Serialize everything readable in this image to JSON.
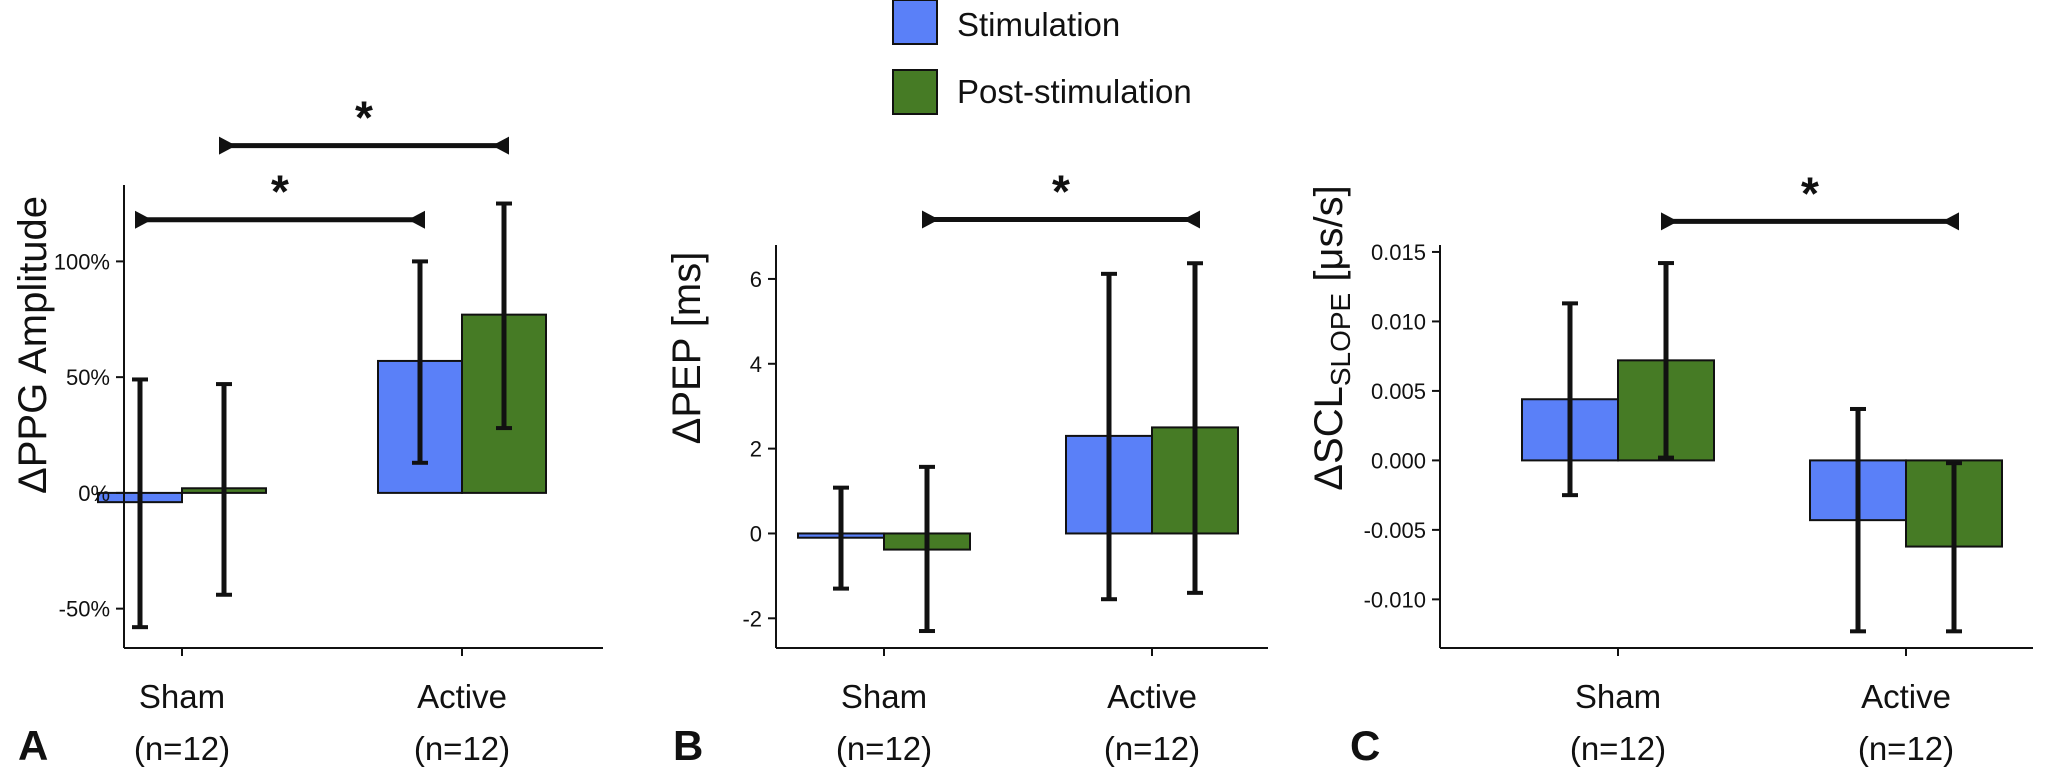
{
  "legend": {
    "items": [
      {
        "label": "Stimulation",
        "color": "#5a80f8"
      },
      {
        "label": "Post-stimulation",
        "color": "#467b25"
      }
    ]
  },
  "chart_data": [
    {
      "type": "bar",
      "panel_letter": "A",
      "ylabel": {
        "main": "ΔPPG Amplitude",
        "sub": ""
      },
      "categories": [
        {
          "name": "Sham",
          "n": "(n=12)"
        },
        {
          "name": "Active",
          "n": "(n=12)"
        }
      ],
      "series": [
        {
          "name": "Stimulation",
          "values": [
            -4,
            57
          ],
          "err_low": [
            -58,
            13
          ],
          "err_high": [
            49,
            100
          ]
        },
        {
          "name": "Post-stimulation",
          "values": [
            2,
            77
          ],
          "err_low": [
            -44,
            28
          ],
          "err_high": [
            47,
            125
          ]
        }
      ],
      "ylim": [
        -67,
        133
      ],
      "yticks": [
        -50,
        0,
        50,
        100
      ],
      "ytick_labels": [
        "-50%",
        "0%",
        "50%",
        "100%"
      ],
      "significance": [
        {
          "from_cat": 0,
          "from_series": 0,
          "to_cat": 1,
          "to_series": 0,
          "y": 118,
          "label": "*"
        },
        {
          "from_cat": 0,
          "from_series": 1,
          "to_cat": 1,
          "to_series": 1,
          "y": 150,
          "label": "*"
        }
      ]
    },
    {
      "type": "bar",
      "panel_letter": "B",
      "ylabel": {
        "main": "ΔPEP [ms]",
        "sub": ""
      },
      "categories": [
        {
          "name": "Sham",
          "n": "(n=12)"
        },
        {
          "name": "Active",
          "n": "(n=12)"
        }
      ],
      "series": [
        {
          "name": "Stimulation",
          "values": [
            -0.1,
            2.3
          ],
          "err_low": [
            -1.3,
            -1.55
          ],
          "err_high": [
            1.08,
            6.12
          ]
        },
        {
          "name": "Post-stimulation",
          "values": [
            -0.38,
            2.5
          ],
          "err_low": [
            -2.3,
            -1.4
          ],
          "err_high": [
            1.57,
            6.37
          ]
        }
      ],
      "ylim": [
        -2.7,
        6.8
      ],
      "yticks": [
        -2,
        0,
        2,
        4,
        6
      ],
      "ytick_labels": [
        "-2",
        "0",
        "2",
        "4",
        "6"
      ],
      "significance": [
        {
          "from_cat": 0,
          "from_series": 1,
          "to_cat": 1,
          "to_series": 1,
          "y": 7.4,
          "label": "*"
        }
      ]
    },
    {
      "type": "bar",
      "panel_letter": "C",
      "ylabel": {
        "main": "ΔSCL",
        "sub": "SLOPE",
        "unit": " [μs/s]"
      },
      "categories": [
        {
          "name": "Sham",
          "n": "(n=12)"
        },
        {
          "name": "Active",
          "n": "(n=12)"
        }
      ],
      "series": [
        {
          "name": "Stimulation",
          "values": [
            0.0044,
            -0.0043
          ],
          "err_low": [
            -0.0025,
            -0.0123
          ],
          "err_high": [
            0.0113,
            0.0037
          ]
        },
        {
          "name": "Post-stimulation",
          "values": [
            0.0072,
            -0.0062
          ],
          "err_low": [
            0.0002,
            -0.0123
          ],
          "err_high": [
            0.0142,
            -0.0002
          ]
        }
      ],
      "ylim": [
        -0.0135,
        0.0155
      ],
      "yticks": [
        -0.01,
        -0.005,
        0,
        0.005,
        0.01,
        0.015
      ],
      "ytick_labels": [
        "-0.010",
        "-0.005",
        "0.000",
        "0.005",
        "0.010",
        "0.015"
      ],
      "significance": [
        {
          "from_cat": 0,
          "from_series": 1,
          "to_cat": 1,
          "to_series": 1,
          "y": 0.0172,
          "label": "*"
        }
      ]
    }
  ]
}
